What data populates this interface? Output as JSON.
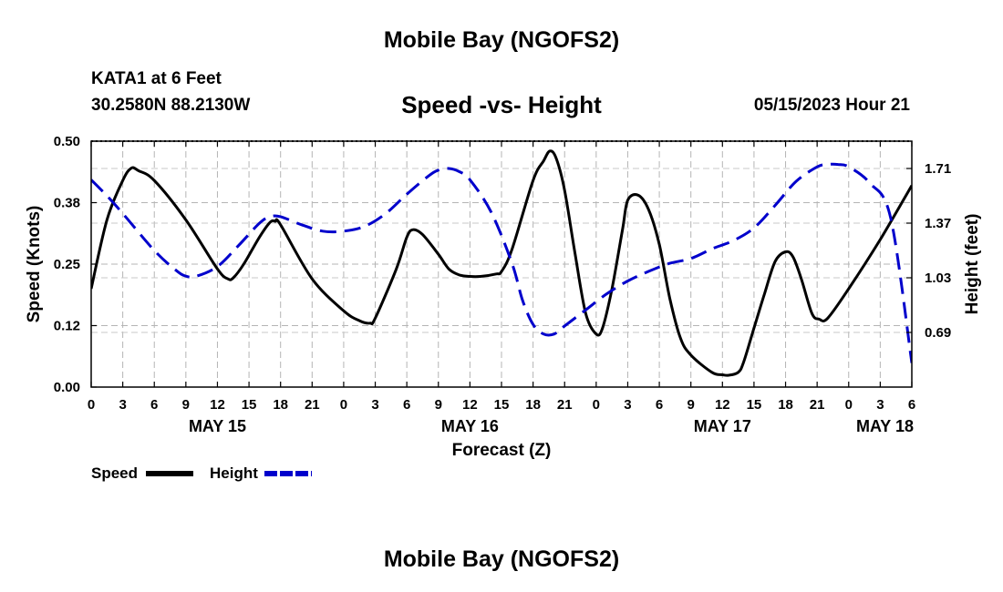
{
  "header": {
    "main_title": "Mobile Bay (NGOFS2)",
    "station_name": "KATA1 at 6 Feet",
    "station_coords": "30.2580N  88.2130W",
    "forecast_time": "05/15/2023 Hour 21",
    "footer_title": "Mobile Bay (NGOFS2)"
  },
  "chart_data": {
    "type": "line",
    "title": "Speed -vs- Height",
    "xlabel": "Forecast (Z)",
    "ylabel_left": "Speed (Knots)",
    "ylabel_right": "Height (feet)",
    "x_range_hours": [
      0,
      78
    ],
    "x_tick_hours": [
      0,
      3,
      6,
      9,
      12,
      15,
      18,
      21,
      24,
      27,
      30,
      33,
      36,
      39,
      42,
      45,
      48,
      51,
      54,
      57,
      60,
      63,
      66,
      69,
      72,
      75,
      78
    ],
    "x_tick_labels": [
      "0",
      "3",
      "6",
      "9",
      "12",
      "15",
      "18",
      "21",
      "0",
      "3",
      "6",
      "9",
      "12",
      "15",
      "18",
      "21",
      "0",
      "3",
      "6",
      "9",
      "12",
      "15",
      "18",
      "21",
      "0",
      "3",
      "6"
    ],
    "day_labels": [
      {
        "hour": 12,
        "label": "MAY 15"
      },
      {
        "hour": 36,
        "label": "MAY 16"
      },
      {
        "hour": 60,
        "label": "MAY 17"
      },
      {
        "hour": 78,
        "label": "MAY 18"
      }
    ],
    "ylim_left": [
      0,
      0.5
    ],
    "yticks_left": [
      0,
      0.125,
      0.25,
      0.375,
      0.5
    ],
    "ytick_labels_left": [
      "0.00",
      "0.12",
      "0.25",
      "0.38",
      "0.50"
    ],
    "ylim_right": [
      0.35,
      1.88
    ],
    "yticks_right": [
      0.69,
      1.03,
      1.37,
      1.71
    ],
    "ytick_labels_right": [
      "0.69",
      "1.03",
      "1.37",
      "1.71"
    ],
    "grid": true,
    "legend_position": "bottom-left",
    "series": [
      {
        "name": "Speed",
        "axis": "left",
        "color": "#000000",
        "dash": "solid",
        "points": [
          [
            0,
            0.2
          ],
          [
            1.5,
            0.34
          ],
          [
            3,
            0.42
          ],
          [
            3.8,
            0.445
          ],
          [
            4.5,
            0.44
          ],
          [
            6,
            0.42
          ],
          [
            9,
            0.34
          ],
          [
            12,
            0.24
          ],
          [
            13,
            0.22
          ],
          [
            13.5,
            0.222
          ],
          [
            14.5,
            0.25
          ],
          [
            16,
            0.305
          ],
          [
            17,
            0.335
          ],
          [
            17.5,
            0.337
          ],
          [
            18,
            0.33
          ],
          [
            21,
            0.22
          ],
          [
            24,
            0.155
          ],
          [
            25.5,
            0.135
          ],
          [
            26.5,
            0.13
          ],
          [
            27,
            0.14
          ],
          [
            29,
            0.24
          ],
          [
            30,
            0.305
          ],
          [
            30.6,
            0.32
          ],
          [
            31.5,
            0.31
          ],
          [
            33,
            0.27
          ],
          [
            34,
            0.24
          ],
          [
            35,
            0.228
          ],
          [
            36,
            0.225
          ],
          [
            37,
            0.225
          ],
          [
            38.5,
            0.23
          ],
          [
            39,
            0.235
          ],
          [
            40,
            0.28
          ],
          [
            42,
            0.42
          ],
          [
            43,
            0.46
          ],
          [
            43.6,
            0.48
          ],
          [
            44.2,
            0.465
          ],
          [
            45,
            0.4
          ],
          [
            46,
            0.27
          ],
          [
            47,
            0.15
          ],
          [
            48,
            0.108
          ],
          [
            48.6,
            0.12
          ],
          [
            49.5,
            0.2
          ],
          [
            50.5,
            0.32
          ],
          [
            51,
            0.38
          ],
          [
            52,
            0.39
          ],
          [
            53,
            0.36
          ],
          [
            54,
            0.29
          ],
          [
            55,
            0.18
          ],
          [
            56,
            0.1
          ],
          [
            57,
            0.065
          ],
          [
            59,
            0.03
          ],
          [
            60,
            0.025
          ],
          [
            60.6,
            0.024
          ],
          [
            61.5,
            0.03
          ],
          [
            62,
            0.05
          ],
          [
            63,
            0.12
          ],
          [
            64,
            0.19
          ],
          [
            65,
            0.255
          ],
          [
            66,
            0.275
          ],
          [
            66.7,
            0.265
          ],
          [
            67.5,
            0.22
          ],
          [
            68.5,
            0.15
          ],
          [
            69.2,
            0.138
          ],
          [
            70,
            0.14
          ],
          [
            72,
            0.2
          ],
          [
            75,
            0.3
          ],
          [
            78,
            0.41
          ]
        ]
      },
      {
        "name": "Height",
        "axis": "right",
        "color": "#0000cc",
        "dash": "dashed",
        "points": [
          [
            0,
            1.64
          ],
          [
            1.5,
            1.54
          ],
          [
            3,
            1.43
          ],
          [
            6,
            1.2
          ],
          [
            8,
            1.08
          ],
          [
            9,
            1.04
          ],
          [
            10,
            1.04
          ],
          [
            12,
            1.1
          ],
          [
            14,
            1.23
          ],
          [
            16,
            1.37
          ],
          [
            17,
            1.41
          ],
          [
            18,
            1.41
          ],
          [
            20,
            1.36
          ],
          [
            22,
            1.32
          ],
          [
            24,
            1.32
          ],
          [
            26,
            1.35
          ],
          [
            28,
            1.43
          ],
          [
            30,
            1.55
          ],
          [
            32,
            1.66
          ],
          [
            33,
            1.7
          ],
          [
            34,
            1.71
          ],
          [
            35,
            1.69
          ],
          [
            36,
            1.64
          ],
          [
            38,
            1.44
          ],
          [
            40,
            1.12
          ],
          [
            41,
            0.89
          ],
          [
            42,
            0.74
          ],
          [
            43,
            0.68
          ],
          [
            44,
            0.68
          ],
          [
            45,
            0.73
          ],
          [
            47,
            0.83
          ],
          [
            49,
            0.93
          ],
          [
            51,
            1.01
          ],
          [
            53,
            1.07
          ],
          [
            55,
            1.12
          ],
          [
            57,
            1.15
          ],
          [
            59,
            1.21
          ],
          [
            61,
            1.26
          ],
          [
            63,
            1.34
          ],
          [
            65,
            1.48
          ],
          [
            67,
            1.63
          ],
          [
            69,
            1.72
          ],
          [
            70,
            1.735
          ],
          [
            71,
            1.735
          ],
          [
            72,
            1.72
          ],
          [
            74,
            1.62
          ],
          [
            76,
            1.4
          ],
          [
            78,
            0.5
          ]
        ]
      }
    ]
  }
}
